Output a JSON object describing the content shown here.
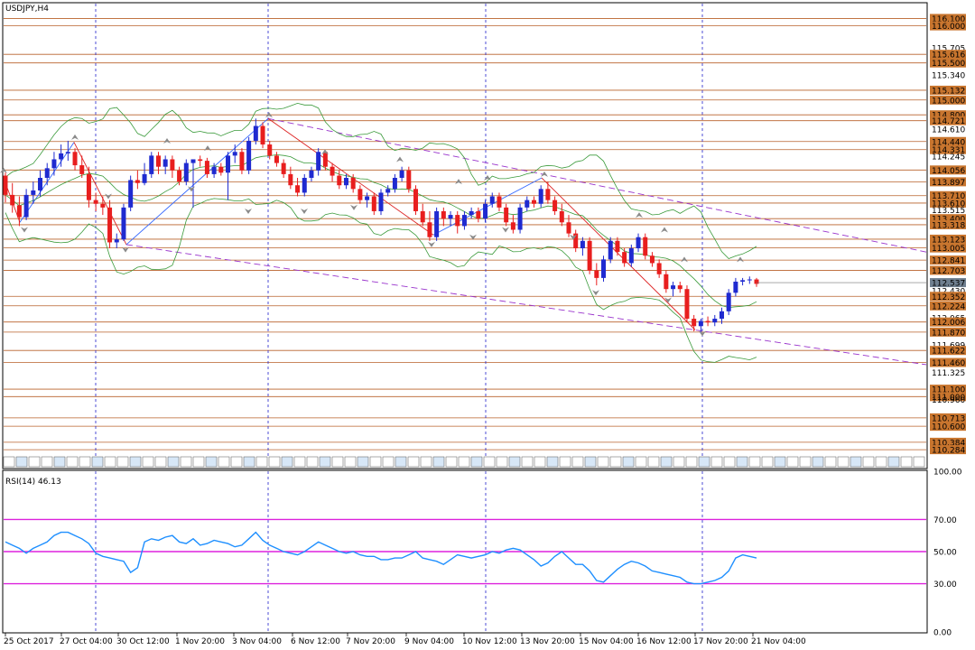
{
  "chart_data": [
    {
      "type": "candlestick",
      "title": "USDJPY,H4",
      "symbol": "USDJPY",
      "timeframe": "H4",
      "ylim": [
        110.2,
        116.3
      ],
      "price_ticks": [
        116.1,
        116.0,
        115.705,
        115.616,
        115.5,
        115.34,
        115.132,
        115.0,
        114.8,
        114.721,
        114.61,
        114.44,
        114.331,
        114.245,
        114.056,
        113.897,
        113.71,
        113.61,
        113.515,
        113.4,
        113.318,
        113.123,
        113.005,
        112.841,
        112.703,
        112.537,
        112.43,
        112.352,
        112.224,
        112.065,
        112.006,
        111.87,
        111.699,
        111.622,
        111.46,
        111.325,
        111.1,
        111.0,
        110.96,
        110.713,
        110.6,
        110.384,
        110.284
      ],
      "current_price": "112.537",
      "hlines": [
        116.1,
        116.0,
        115.616,
        115.5,
        115.132,
        115.0,
        114.8,
        114.721,
        114.44,
        114.331,
        114.056,
        113.897,
        113.71,
        113.61,
        113.4,
        113.318,
        113.123,
        113.005,
        112.841,
        112.703,
        112.352,
        112.224,
        112.006,
        111.87,
        111.622,
        111.46,
        111.1,
        111.0,
        110.713,
        110.6,
        110.384,
        110.284
      ],
      "x_labels": [
        "25 Oct 2017",
        "27 Oct 04:00",
        "30 Oct 12:00",
        "1 Nov 20:00",
        "3 Nov 04:00",
        "6 Nov 12:00",
        "7 Nov 20:00",
        "9 Nov 04:00",
        "10 Nov 12:00",
        "13 Nov 20:00",
        "15 Nov 04:00",
        "16 Nov 12:00",
        "17 Nov 20:00",
        "21 Nov 04:00"
      ],
      "candles": [
        [
          113.98,
          114.02,
          113.62,
          113.72
        ],
        [
          113.72,
          113.88,
          113.48,
          113.58
        ],
        [
          113.58,
          113.7,
          113.3,
          113.42
        ],
        [
          113.42,
          113.8,
          113.38,
          113.72
        ],
        [
          113.72,
          113.9,
          113.6,
          113.78
        ],
        [
          113.78,
          114.05,
          113.7,
          113.95
        ],
        [
          113.95,
          114.15,
          113.85,
          114.08
        ],
        [
          114.08,
          114.3,
          113.98,
          114.2
        ],
        [
          114.2,
          114.4,
          114.1,
          114.28
        ],
        [
          114.28,
          114.45,
          114.18,
          114.3
        ],
        [
          114.3,
          114.35,
          114.05,
          114.12
        ],
        [
          114.12,
          114.25,
          113.95,
          114.0
        ],
        [
          114.0,
          114.1,
          113.55,
          113.65
        ],
        [
          113.65,
          113.75,
          113.5,
          113.6
        ],
        [
          113.6,
          113.7,
          113.45,
          113.55
        ],
        [
          113.55,
          113.65,
          113.0,
          113.08
        ],
        [
          113.08,
          113.2,
          113.0,
          113.12
        ],
        [
          113.12,
          113.6,
          113.1,
          113.55
        ],
        [
          113.55,
          113.98,
          113.5,
          113.92
        ],
        [
          113.92,
          114.05,
          113.8,
          113.88
        ],
        [
          113.88,
          114.15,
          113.85,
          114.0
        ],
        [
          114.0,
          114.3,
          113.95,
          114.25
        ],
        [
          114.25,
          114.3,
          114.0,
          114.1
        ],
        [
          114.1,
          114.25,
          114.0,
          114.2
        ],
        [
          114.2,
          114.25,
          113.95,
          114.05
        ],
        [
          114.05,
          114.1,
          113.85,
          113.9
        ],
        [
          113.9,
          114.2,
          113.85,
          114.15
        ],
        [
          114.15,
          114.2,
          113.55,
          114.2
        ],
        [
          114.2,
          114.25,
          114.1,
          114.18
        ],
        [
          114.18,
          114.22,
          113.95,
          114.0
        ],
        [
          114.0,
          114.15,
          113.95,
          114.1
        ],
        [
          114.1,
          114.15,
          113.98,
          114.02
        ],
        [
          114.02,
          114.3,
          113.65,
          114.25
        ],
        [
          114.25,
          114.4,
          114.15,
          114.3
        ],
        [
          114.3,
          114.35,
          114.0,
          114.05
        ],
        [
          114.05,
          114.5,
          114.0,
          114.45
        ],
        [
          114.45,
          114.75,
          114.4,
          114.65
        ],
        [
          114.65,
          114.7,
          114.35,
          114.4
        ],
        [
          114.4,
          114.45,
          114.2,
          114.25
        ],
        [
          114.25,
          114.3,
          114.1,
          114.15
        ],
        [
          114.15,
          114.2,
          113.95,
          114.0
        ],
        [
          114.0,
          114.1,
          113.8,
          113.85
        ],
        [
          113.85,
          113.95,
          113.7,
          113.75
        ],
        [
          113.75,
          114.0,
          113.7,
          113.95
        ],
        [
          113.95,
          114.1,
          113.9,
          114.05
        ],
        [
          114.05,
          114.35,
          113.98,
          114.3
        ],
        [
          114.3,
          114.32,
          114.05,
          114.1
        ],
        [
          114.1,
          114.15,
          113.9,
          113.98
        ],
        [
          113.98,
          114.05,
          113.8,
          113.85
        ],
        [
          113.85,
          114.0,
          113.8,
          113.95
        ],
        [
          113.95,
          114.0,
          113.75,
          113.8
        ],
        [
          113.8,
          113.85,
          113.6,
          113.65
        ],
        [
          113.65,
          113.75,
          113.55,
          113.7
        ],
        [
          113.7,
          113.75,
          113.45,
          113.5
        ],
        [
          113.5,
          113.8,
          113.45,
          113.75
        ],
        [
          113.75,
          113.85,
          113.7,
          113.8
        ],
        [
          113.8,
          114.0,
          113.75,
          113.95
        ],
        [
          113.95,
          114.1,
          113.9,
          114.05
        ],
        [
          114.05,
          114.1,
          113.75,
          113.8
        ],
        [
          113.8,
          113.85,
          113.45,
          113.5
        ],
        [
          113.5,
          113.6,
          113.3,
          113.35
        ],
        [
          113.35,
          113.5,
          113.1,
          113.15
        ],
        [
          113.15,
          113.55,
          113.1,
          113.5
        ],
        [
          113.5,
          113.55,
          113.3,
          113.4
        ],
        [
          113.4,
          113.5,
          113.3,
          113.45
        ],
        [
          113.45,
          113.5,
          113.2,
          113.3
        ],
        [
          113.3,
          113.5,
          113.25,
          113.45
        ],
        [
          113.45,
          113.55,
          113.4,
          113.5
        ],
        [
          113.5,
          113.55,
          113.35,
          113.4
        ],
        [
          113.4,
          113.65,
          113.35,
          113.6
        ],
        [
          113.6,
          113.75,
          113.55,
          113.7
        ],
        [
          113.7,
          113.75,
          113.5,
          113.55
        ],
        [
          113.55,
          113.6,
          113.3,
          113.35
        ],
        [
          113.35,
          113.45,
          113.2,
          113.25
        ],
        [
          113.25,
          113.6,
          113.2,
          113.55
        ],
        [
          113.55,
          113.7,
          113.5,
          113.65
        ],
        [
          113.65,
          113.7,
          113.55,
          113.6
        ],
        [
          113.6,
          113.85,
          113.55,
          113.8
        ],
        [
          113.8,
          113.9,
          113.6,
          113.65
        ],
        [
          113.65,
          113.7,
          113.45,
          113.5
        ],
        [
          113.5,
          113.6,
          113.3,
          113.35
        ],
        [
          113.35,
          113.45,
          113.15,
          113.2
        ],
        [
          113.2,
          113.25,
          112.95,
          113.0
        ],
        [
          113.0,
          113.15,
          112.9,
          113.1
        ],
        [
          113.1,
          113.15,
          112.65,
          112.7
        ],
        [
          112.7,
          112.8,
          112.5,
          112.6
        ],
        [
          112.6,
          112.9,
          112.55,
          112.85
        ],
        [
          112.85,
          113.15,
          112.8,
          113.1
        ],
        [
          113.1,
          113.15,
          112.9,
          112.95
        ],
        [
          112.95,
          113.0,
          112.75,
          112.8
        ],
        [
          112.8,
          113.05,
          112.75,
          113.0
        ],
        [
          113.0,
          113.2,
          112.95,
          113.15
        ],
        [
          113.15,
          113.2,
          112.85,
          112.9
        ],
        [
          112.9,
          112.95,
          112.75,
          112.8
        ],
        [
          112.8,
          112.85,
          112.6,
          112.65
        ],
        [
          112.65,
          112.7,
          112.4,
          112.45
        ],
        [
          112.45,
          112.55,
          112.35,
          112.5
        ],
        [
          112.5,
          112.55,
          112.4,
          112.45
        ],
        [
          112.45,
          112.5,
          112.0,
          112.05
        ],
        [
          112.05,
          112.1,
          111.88,
          111.95
        ],
        [
          111.95,
          112.05,
          111.85,
          112.02
        ],
        [
          112.02,
          112.08,
          111.95,
          112.0
        ],
        [
          112.0,
          112.1,
          111.95,
          112.05
        ],
        [
          112.05,
          112.2,
          111.98,
          112.15
        ],
        [
          112.15,
          112.45,
          112.1,
          112.4
        ],
        [
          112.4,
          112.6,
          112.35,
          112.55
        ],
        [
          112.55,
          112.6,
          112.5,
          112.57
        ],
        [
          112.57,
          112.62,
          112.52,
          112.58
        ],
        [
          112.58,
          112.6,
          112.48,
          112.52
        ]
      ]
    },
    {
      "type": "line",
      "title": "RSI(14) 46.13",
      "indicator": "RSI(14)",
      "last_value": "46.13",
      "ylim": [
        0,
        100
      ],
      "y_ticks": [
        "100.00",
        "70.00",
        "50.00",
        "30.00",
        "0.00"
      ],
      "levels": [
        70,
        50,
        30
      ],
      "series": [
        {
          "values": [
            56,
            54,
            52,
            49,
            52,
            54,
            56,
            60,
            62,
            62,
            60,
            58,
            55,
            49,
            47,
            46,
            45,
            44,
            37,
            40,
            56,
            58,
            57,
            59,
            60,
            56,
            55,
            58,
            54,
            55,
            57,
            56,
            55,
            53,
            54,
            58,
            62,
            57,
            54,
            52,
            50,
            49,
            48,
            50,
            53,
            56,
            54,
            52,
            50,
            49,
            50,
            48,
            47,
            47,
            45,
            45,
            46,
            46,
            48,
            50,
            46,
            45,
            44,
            42,
            45,
            48,
            47,
            46,
            47,
            48,
            50,
            49,
            51,
            52,
            51,
            48,
            45,
            41,
            43,
            47,
            50,
            46,
            42,
            42,
            38,
            32,
            31,
            35,
            39,
            42,
            44,
            43,
            41,
            38,
            37,
            36,
            35,
            34,
            31,
            30,
            30,
            31,
            32,
            34,
            38,
            46,
            48,
            47,
            46
          ]
        }
      ]
    }
  ],
  "labels": {
    "title": "USDJPY,H4",
    "rsi_title": "RSI(14) 46.13",
    "current_price": "112.537"
  }
}
